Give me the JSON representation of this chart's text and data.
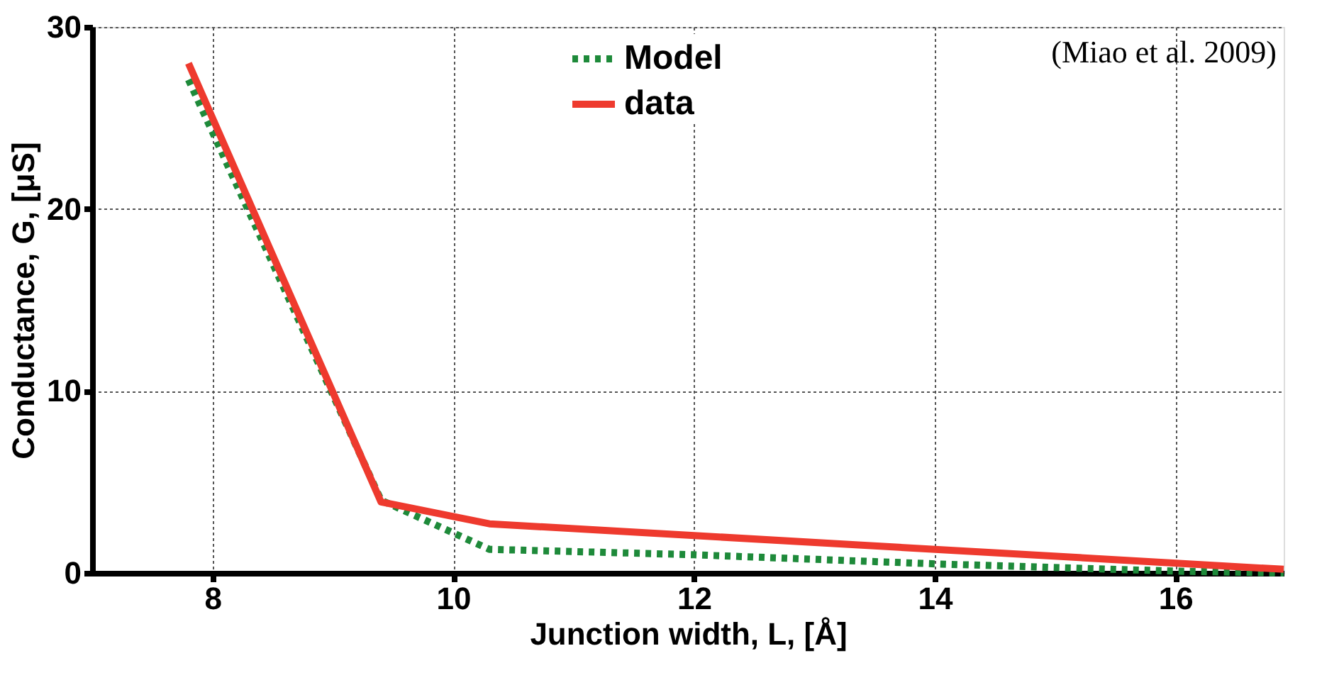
{
  "chart_data": {
    "type": "line",
    "xlabel": "Junction width, L, [Å]",
    "ylabel": "Conductance, G, [μS]",
    "xlim": [
      7,
      16.9
    ],
    "ylim": [
      0,
      30
    ],
    "xticks": [
      8,
      10,
      12,
      14,
      16
    ],
    "yticks": [
      0,
      10,
      20,
      30
    ],
    "grid": true,
    "legend": "top",
    "marker": "none",
    "annotations": [
      "(Miao et al. 2009)"
    ],
    "series": [
      {
        "name": "Model",
        "color": "#1e8a3a",
        "line_style": "dotted",
        "x": [
          7.8,
          9.4,
          10.3,
          12,
          14,
          16,
          16.9
        ],
        "values": [
          27.1,
          4.0,
          1.3,
          1.0,
          0.5,
          0.1,
          0.0
        ]
      },
      {
        "name": "data",
        "color": "#ee3a2e",
        "line_style": "solid",
        "x": [
          7.8,
          9.4,
          10.3,
          16.9
        ],
        "values": [
          28.0,
          3.9,
          2.7,
          0.2
        ]
      }
    ]
  }
}
